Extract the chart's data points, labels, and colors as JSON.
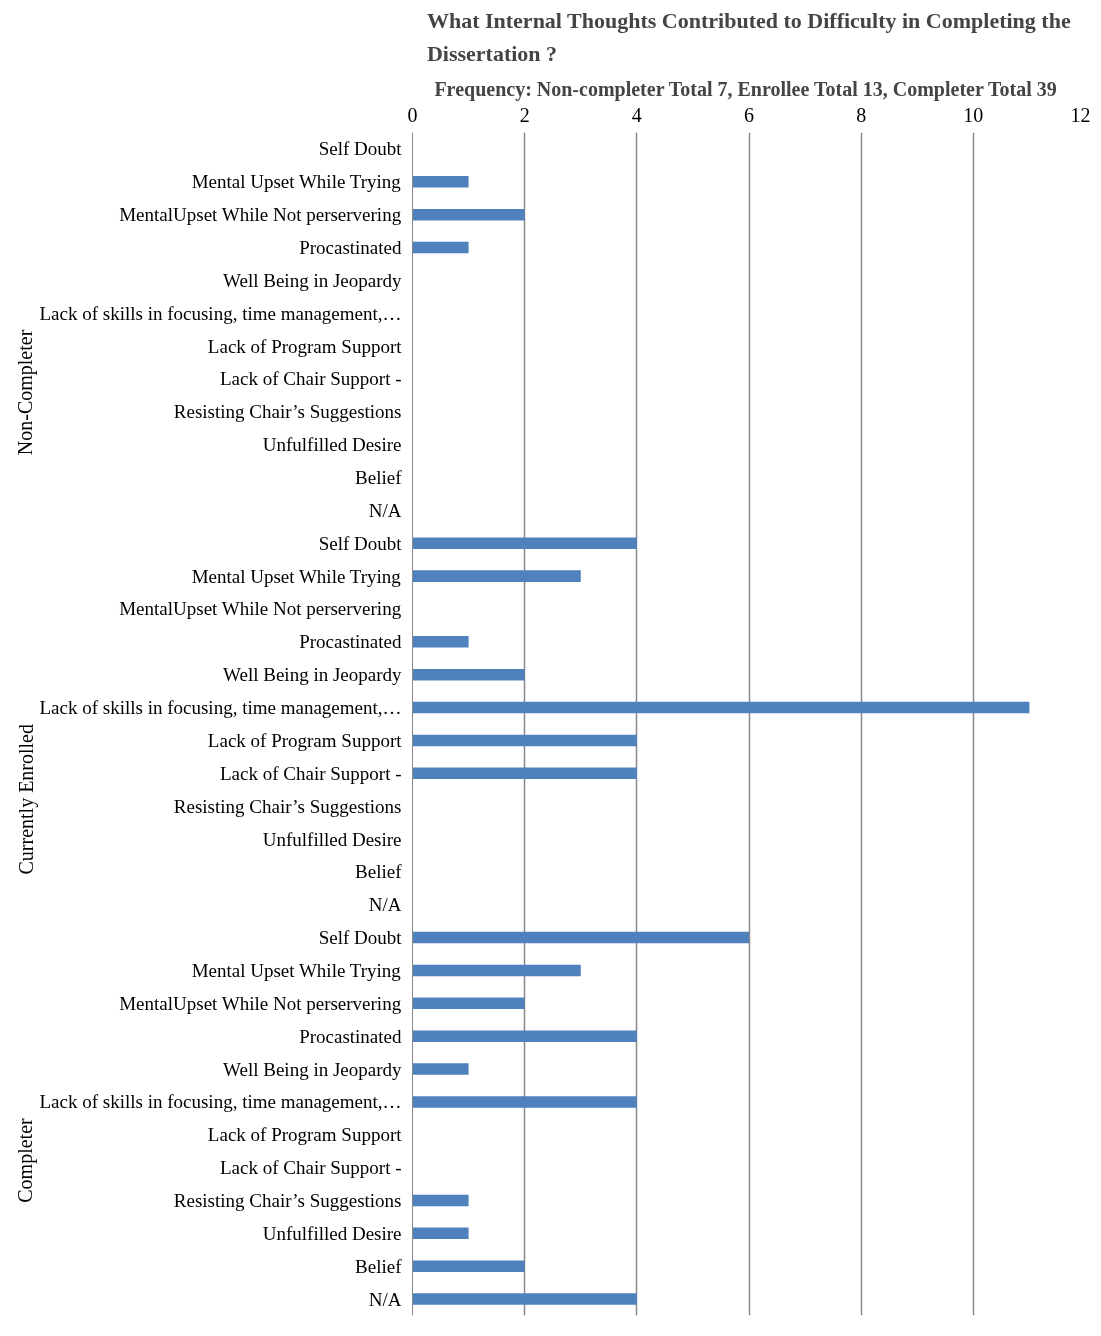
{
  "chart_data": {
    "type": "bar",
    "orientation": "horizontal",
    "title": "What Internal Thoughts Contributed to Difficulty in Completing the Dissertation ?",
    "subtitle": "Frequency:  Non-completer Total 7, Enrollee Total 13, Completer Total 39",
    "categories": [
      "Self Doubt",
      "Mental Upset While Trying",
      "MentalUpset While Not perservering",
      "Procastinated",
      "Well Being in Jeopardy",
      "Lack of skills in focusing, time management,…",
      "Lack of Program Support",
      "Lack of Chair Support -",
      "Resisting Chair’s Suggestions",
      "Unfulfilled Desire",
      "Belief",
      "N/A",
      "Self Doubt",
      "Mental Upset While Trying",
      "MentalUpset While Not perservering",
      "Procastinated",
      "Well Being in Jeopardy",
      "Lack of skills in focusing, time management,…",
      "Lack of Program Support",
      "Lack of Chair Support -",
      "Resisting Chair’s Suggestions",
      "Unfulfilled Desire",
      "Belief",
      "N/A",
      "Self Doubt",
      "Mental Upset While Trying",
      "MentalUpset While Not perservering",
      "Procastinated",
      "Well Being in Jeopardy",
      "Lack of skills in focusing, time management,…",
      "Lack of Program Support",
      "Lack of Chair Support -",
      "Resisting Chair’s Suggestions",
      "Unfulfilled Desire",
      "Belief",
      "N/A"
    ],
    "values": [
      0,
      1,
      2,
      1,
      0,
      0,
      0,
      0,
      0,
      0,
      0,
      0,
      4,
      3,
      0,
      1,
      2,
      11,
      4,
      4,
      0,
      0,
      0,
      0,
      6,
      3,
      2,
      4,
      1,
      4,
      0,
      0,
      1,
      1,
      2,
      4
    ],
    "color": "#4f81bd",
    "annotations": [
      "Non-Completer",
      "Currently Enrolled",
      "Completer"
    ],
    "xlim": [
      0,
      12
    ],
    "xticks": [
      0,
      2,
      4,
      6,
      8,
      10,
      12
    ],
    "grid": "x"
  }
}
